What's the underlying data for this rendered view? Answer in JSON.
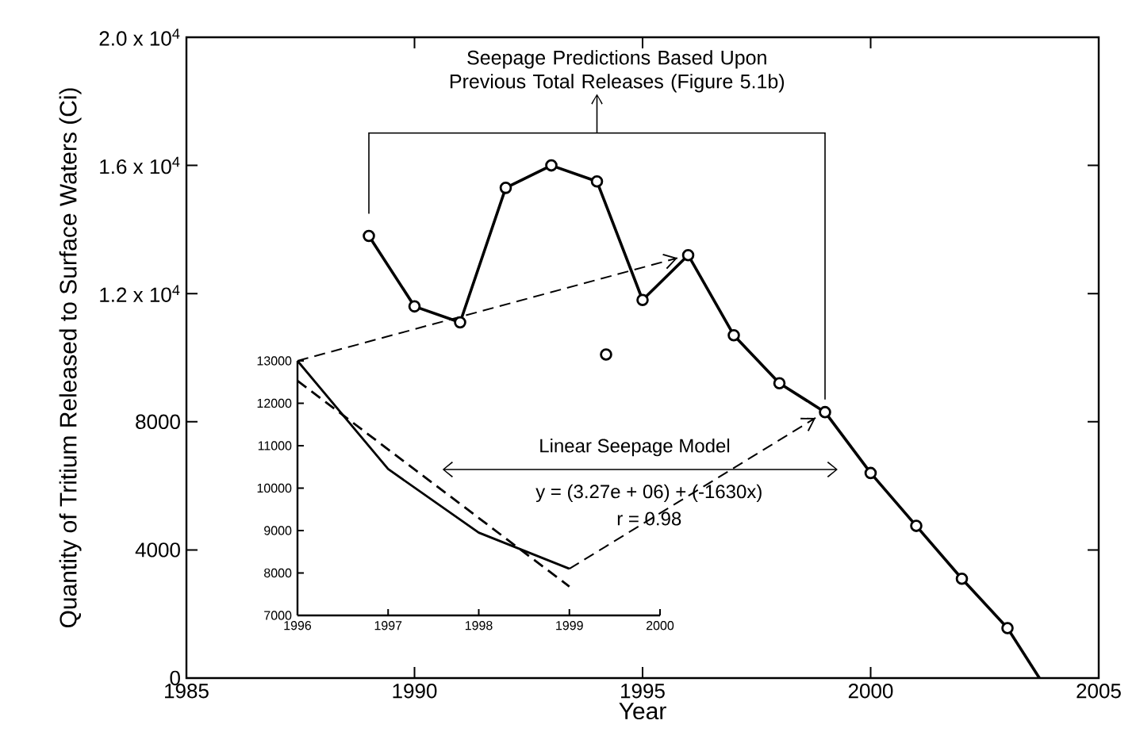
{
  "chart_data": [
    {
      "type": "line",
      "xlabel": "Year",
      "ylabel": "Quantity of Tritium Released to Surface Waters (Ci)",
      "xlim": [
        1985,
        2005
      ],
      "ylim": [
        0,
        20000
      ],
      "xticks": [
        1985,
        1990,
        1995,
        2000,
        2005
      ],
      "yticks": [
        0,
        4000,
        8000,
        {
          "value": 12000,
          "label": "1.2 x 10$^{4}$"
        },
        {
          "value": 16000,
          "label": "1.6 x 10$^{4}$"
        },
        {
          "value": 20000,
          "label": "2.0 x 10$^{4}$"
        }
      ],
      "marker": "circle",
      "series": [
        {
          "color": "#000000",
          "x": [
            1989,
            1990,
            1991,
            1992,
            1993,
            1994,
            1995,
            1996,
            1997,
            1998,
            1999,
            2000,
            2001,
            2002,
            2003
          ],
          "values": [
            13800,
            11600,
            11100,
            15300,
            16000,
            15500,
            11800,
            13200,
            10700,
            9200,
            8300,
            6400,
            4750,
            3100,
            1560
          ]
        },
        {
          "color": "#000000",
          "x": [
            2003,
            2003.7
          ],
          "values": [
            1560,
            0
          ],
          "marker": "none"
        },
        {
          "type": "scatter",
          "color": "#000000",
          "x": [
            1994.2
          ],
          "values": [
            10100
          ]
        }
      ],
      "annotations": [
        "Seepage Predictions Based Upon Previous Total Releases (Figure 5.1b)"
      ]
    },
    {
      "type": "line",
      "xlim": [
        1996,
        2000
      ],
      "ylim": [
        7000,
        13000
      ],
      "xticks": [
        1996,
        1997,
        1998,
        1999,
        2000
      ],
      "yticks": [
        7000,
        8000,
        9000,
        10000,
        11000,
        12000,
        13000
      ],
      "marker": "none",
      "series": [
        {
          "color": "#000000",
          "x": [
            1996,
            1997,
            1998,
            1999
          ],
          "values": [
            13000,
            10450,
            8950,
            8100
          ]
        },
        {
          "color": "#000000",
          "x": [
            1996,
            1999
          ],
          "values": [
            12530,
            7680
          ],
          "line_style": "dashed"
        }
      ],
      "annotations": [
        "Linear Seepage Model",
        "y = (3.27e + 06) + (-1630x)",
        "r = 0.98"
      ]
    }
  ]
}
